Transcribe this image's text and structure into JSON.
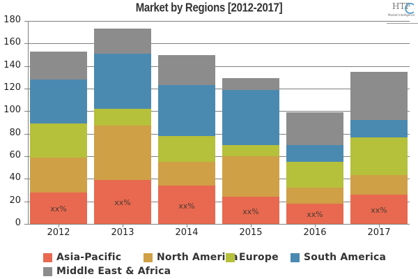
{
  "header": {
    "title": "Market by Regions [2012-2017]",
    "logo": {
      "text": "HTF",
      "subtext": "Market Intelligence",
      "icon": "htf-logo-icon"
    }
  },
  "colors": {
    "asia_pacific": "#E8694F",
    "north_america": "#CFA046",
    "europe": "#B5C03B",
    "south_america": "#4A8AB1",
    "middle_east_africa": "#8C8C8C"
  },
  "chart_data": {
    "type": "bar",
    "stacked": true,
    "title": "Market by Regions [2012-2017]",
    "xlabel": "",
    "ylabel": "",
    "ylim": [
      0,
      180
    ],
    "yticks": [
      0,
      20,
      40,
      60,
      80,
      100,
      120,
      140,
      160,
      180
    ],
    "grid": true,
    "legend_position": "bottom",
    "categories": [
      "2012",
      "2013",
      "2014",
      "2015",
      "2016",
      "2017"
    ],
    "series": [
      {
        "name": "Asia-Pacific",
        "color": "#E8694F",
        "values": [
          28,
          39,
          34,
          24,
          18,
          26
        ],
        "data_labels": [
          "xx%",
          "xx%",
          "xx%",
          "xx%",
          "xx%",
          "xx%"
        ]
      },
      {
        "name": "North America",
        "color": "#CFA046",
        "values": [
          31,
          48,
          21,
          36,
          14,
          17
        ]
      },
      {
        "name": "Europe",
        "color": "#B5C03B",
        "values": [
          30,
          15,
          23,
          10,
          23,
          34
        ]
      },
      {
        "name": "South America",
        "color": "#4A8AB1",
        "values": [
          39,
          49,
          45,
          49,
          15,
          15
        ]
      },
      {
        "name": "Middle East & Africa",
        "color": "#8C8C8C",
        "values": [
          25,
          22,
          27,
          10,
          29,
          43
        ]
      }
    ],
    "totals": [
      153,
      173,
      150,
      129,
      99,
      135
    ]
  },
  "legend": {
    "items": [
      {
        "label": "Asia-Pacific",
        "color": "#E8694F"
      },
      {
        "label": "North America",
        "color": "#CFA046"
      },
      {
        "label": "Europe",
        "color": "#B5C03B"
      },
      {
        "label": "South America",
        "color": "#4A8AB1"
      },
      {
        "label": "Middle East & Africa",
        "color": "#8C8C8C"
      }
    ]
  }
}
